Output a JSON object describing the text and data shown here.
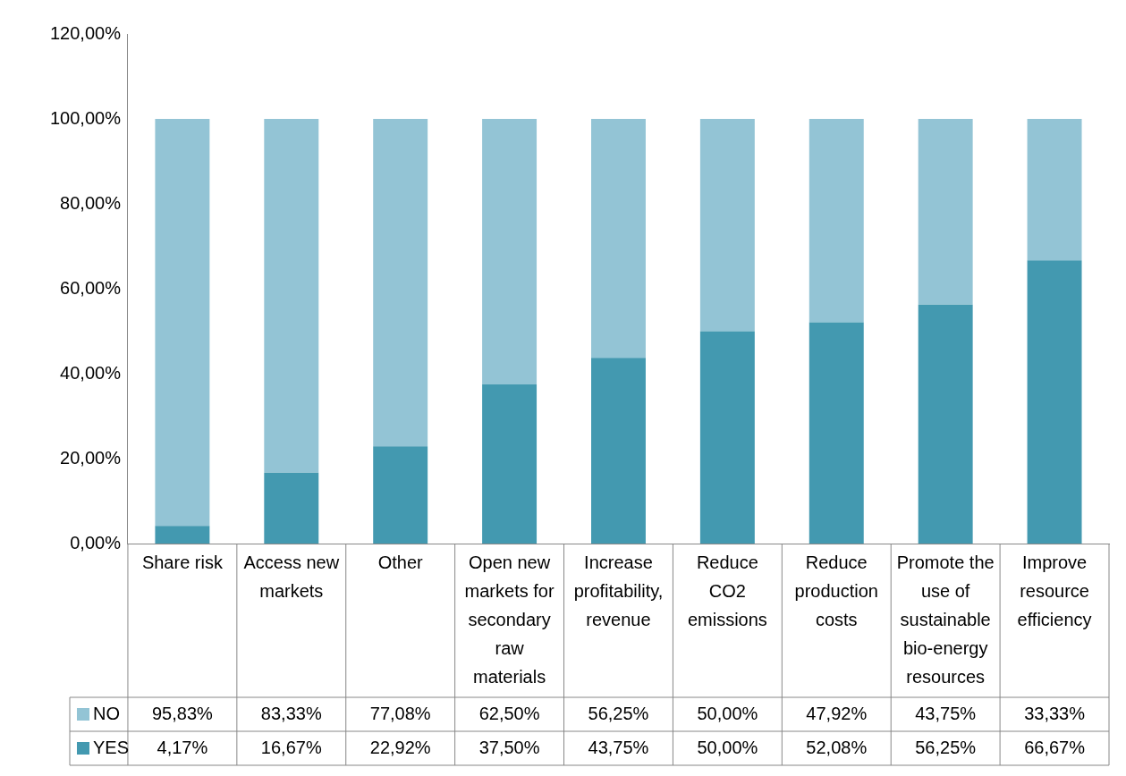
{
  "chart_data": {
    "type": "bar",
    "stacked": true,
    "categories": [
      "Share risk",
      "Access new markets",
      "Other",
      "Open new markets for secondary raw materials",
      "Increase profitability, revenue",
      "Reduce CO2 emissions",
      "Reduce production costs",
      "Promote the use of sustainable bio-energy resources",
      "Improve resource efficiency"
    ],
    "series": [
      {
        "name": "YES",
        "color": "#4399b0",
        "values": [
          4.17,
          16.67,
          22.92,
          37.5,
          43.75,
          50,
          52.08,
          56.25,
          66.67
        ],
        "value_labels": [
          "4,17%",
          "16,67%",
          "22,92%",
          "37,50%",
          "43,75%",
          "50,00%",
          "52,08%",
          "56,25%",
          "66,67%"
        ]
      },
      {
        "name": "NO",
        "color": "#93c4d5",
        "values": [
          95.83,
          83.33,
          77.08,
          62.5,
          56.25,
          50,
          47.92,
          43.75,
          33.33
        ],
        "value_labels": [
          "95,83%",
          "83,33%",
          "77,08%",
          "62,50%",
          "56,25%",
          "50,00%",
          "47,92%",
          "43,75%",
          "33,33%"
        ]
      }
    ],
    "ylim": [
      0,
      120
    ],
    "yticks": [
      {
        "value": 0,
        "label": "0,00%"
      },
      {
        "value": 20,
        "label": "20,00%"
      },
      {
        "value": 40,
        "label": "40,00%"
      },
      {
        "value": 60,
        "label": "60,00%"
      },
      {
        "value": 80,
        "label": "80,00%"
      },
      {
        "value": 100,
        "label": "100,00%"
      },
      {
        "value": 120,
        "label": "120,00%"
      }
    ],
    "grid": false,
    "legend": "bottom"
  }
}
